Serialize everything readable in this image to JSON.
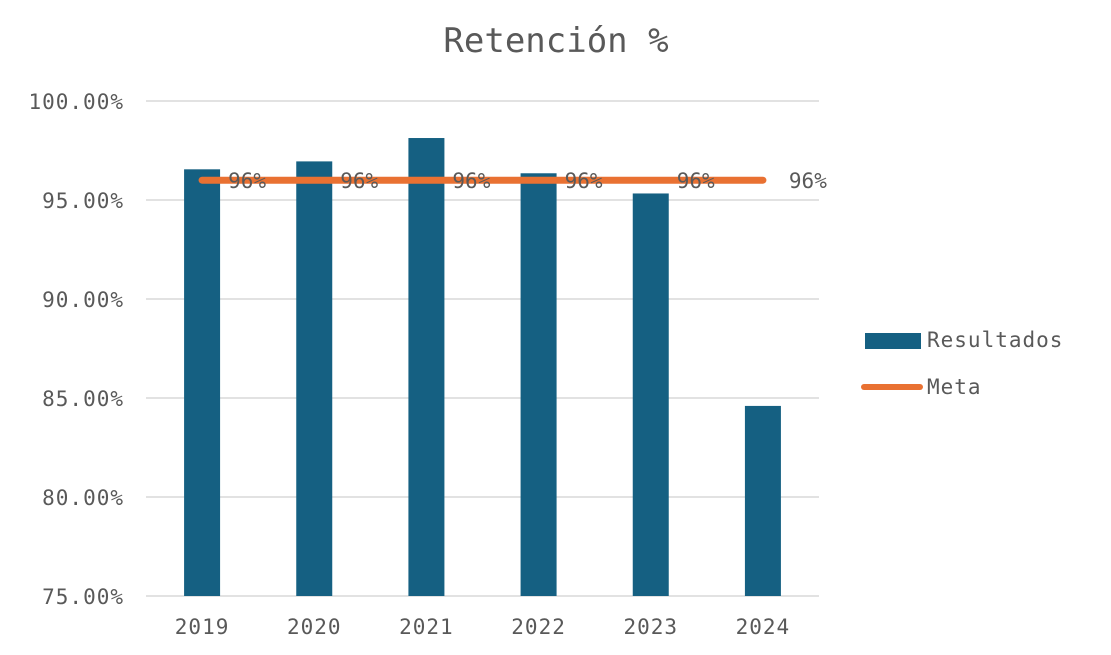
{
  "chart_data": {
    "type": "bar",
    "title": "Retención %",
    "categories": [
      "2019",
      "2020",
      "2021",
      "2022",
      "2023",
      "2024"
    ],
    "ylim": [
      75,
      100
    ],
    "yticks": [
      75,
      80,
      85,
      90,
      95,
      100
    ],
    "ytick_labels": [
      "75.00%",
      "80.00%",
      "85.00%",
      "90.00%",
      "95.00%",
      "100.00%"
    ],
    "grid": true,
    "legend_position": "right",
    "series": [
      {
        "name": "Resultados",
        "kind": "bar",
        "color": "#156082",
        "values": [
          96.55,
          96.95,
          98.13,
          96.35,
          95.33,
          84.6
        ]
      },
      {
        "name": "Meta",
        "kind": "line",
        "color": "#E97132",
        "values": [
          96,
          96,
          96,
          96,
          96,
          96
        ],
        "data_labels": [
          "96%",
          "96%",
          "96%",
          "96%",
          "96%",
          "96%"
        ]
      }
    ]
  }
}
